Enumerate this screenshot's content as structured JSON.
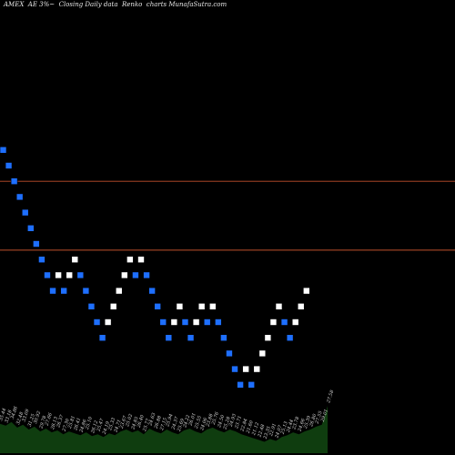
{
  "chart_data": {
    "type": "renko",
    "title": "AMEX  AE 3%~  Closing Daily data  Renko  charts MunafaSutra.com",
    "colors": {
      "background": "#000000",
      "up_brick": "#ffffff",
      "down_brick": "#1e6fff",
      "reference_line": "#c0502c",
      "volume": "#0f3d0f",
      "label_text": "#dddddd"
    },
    "reference_levels": [
      33.0,
      28.6
    ],
    "y_range": [
      19.0,
      44.0
    ],
    "bricks": [
      {
        "dir": "down",
        "close": 35.0
      },
      {
        "dir": "down",
        "close": 34.0
      },
      {
        "dir": "down",
        "close": 33.0
      },
      {
        "dir": "down",
        "close": 32.0
      },
      {
        "dir": "down",
        "close": 31.0
      },
      {
        "dir": "down",
        "close": 30.0
      },
      {
        "dir": "down",
        "close": 29.0
      },
      {
        "dir": "down",
        "close": 28.0
      },
      {
        "dir": "down",
        "close": 27.0
      },
      {
        "dir": "down",
        "close": 26.0
      },
      {
        "dir": "up",
        "close": 27.0
      },
      {
        "dir": "down",
        "close": 26.0
      },
      {
        "dir": "up",
        "close": 27.0
      },
      {
        "dir": "up",
        "close": 28.0
      },
      {
        "dir": "down",
        "close": 27.0
      },
      {
        "dir": "down",
        "close": 26.0
      },
      {
        "dir": "down",
        "close": 25.0
      },
      {
        "dir": "down",
        "close": 24.0
      },
      {
        "dir": "down",
        "close": 23.0
      },
      {
        "dir": "up",
        "close": 24.0
      },
      {
        "dir": "up",
        "close": 25.0
      },
      {
        "dir": "up",
        "close": 26.0
      },
      {
        "dir": "up",
        "close": 27.0
      },
      {
        "dir": "up",
        "close": 28.0
      },
      {
        "dir": "down",
        "close": 27.0
      },
      {
        "dir": "up",
        "close": 28.0
      },
      {
        "dir": "down",
        "close": 27.0
      },
      {
        "dir": "down",
        "close": 26.0
      },
      {
        "dir": "down",
        "close": 25.0
      },
      {
        "dir": "down",
        "close": 24.0
      },
      {
        "dir": "down",
        "close": 23.0
      },
      {
        "dir": "up",
        "close": 24.0
      },
      {
        "dir": "up",
        "close": 25.0
      },
      {
        "dir": "down",
        "close": 24.0
      },
      {
        "dir": "down",
        "close": 23.0
      },
      {
        "dir": "up",
        "close": 24.0
      },
      {
        "dir": "up",
        "close": 25.0
      },
      {
        "dir": "down",
        "close": 24.0
      },
      {
        "dir": "up",
        "close": 25.0
      },
      {
        "dir": "down",
        "close": 24.0
      },
      {
        "dir": "down",
        "close": 23.0
      },
      {
        "dir": "down",
        "close": 22.0
      },
      {
        "dir": "down",
        "close": 21.0
      },
      {
        "dir": "down",
        "close": 20.0
      },
      {
        "dir": "up",
        "close": 21.0
      },
      {
        "dir": "down",
        "close": 20.0
      },
      {
        "dir": "up",
        "close": 21.0
      },
      {
        "dir": "up",
        "close": 22.0
      },
      {
        "dir": "up",
        "close": 23.0
      },
      {
        "dir": "up",
        "close": 24.0
      },
      {
        "dir": "up",
        "close": 25.0
      },
      {
        "dir": "down",
        "close": 24.0
      },
      {
        "dir": "down",
        "close": 23.0
      },
      {
        "dir": "up",
        "close": 24.0
      },
      {
        "dir": "up",
        "close": 25.0
      },
      {
        "dir": "up",
        "close": 26.0
      }
    ],
    "volume": [
      0.62,
      0.58,
      0.66,
      0.54,
      0.6,
      0.5,
      0.56,
      0.46,
      0.52,
      0.44,
      0.48,
      0.4,
      0.46,
      0.42,
      0.38,
      0.44,
      0.36,
      0.4,
      0.34,
      0.42,
      0.38,
      0.46,
      0.5,
      0.44,
      0.48,
      0.4,
      0.52,
      0.46,
      0.42,
      0.5,
      0.44,
      0.4,
      0.48,
      0.52,
      0.46,
      0.42,
      0.5,
      0.54,
      0.48,
      0.44,
      0.5,
      0.46,
      0.4,
      0.36,
      0.32,
      0.28,
      0.24,
      0.3,
      0.26,
      0.34,
      0.38,
      0.44,
      0.4,
      0.46,
      0.5,
      0.56,
      0.6,
      1.0
    ],
    "price_labels": [
      "35.44",
      "33.18",
      "34.86",
      "32.48",
      "33.09",
      "31.25",
      "30.92",
      "29.78",
      "27.66",
      "28.13",
      "26.37",
      "27.30",
      "25.81",
      "26.41",
      "24.86",
      "25.10",
      "26.12",
      "25.47",
      "24.19",
      "25.33",
      "24.71",
      "23.67",
      "25.02",
      "24.85",
      "26.40",
      "25.77",
      "24.63",
      "26.88",
      "27.15",
      "25.94",
      "24.37",
      "25.69",
      "24.22",
      "26.01",
      "25.55",
      "24.06",
      "23.88",
      "25.76",
      "24.50",
      "25.28",
      "24.93",
      "23.71",
      "22.84",
      "21.60",
      "21.12",
      "22.48",
      "23.35",
      "22.91",
      "24.07",
      "25.13",
      "24.44",
      "23.78",
      "24.66",
      "25.39",
      "26.80",
      "27.55",
      "29.01",
      "27.58"
    ]
  }
}
